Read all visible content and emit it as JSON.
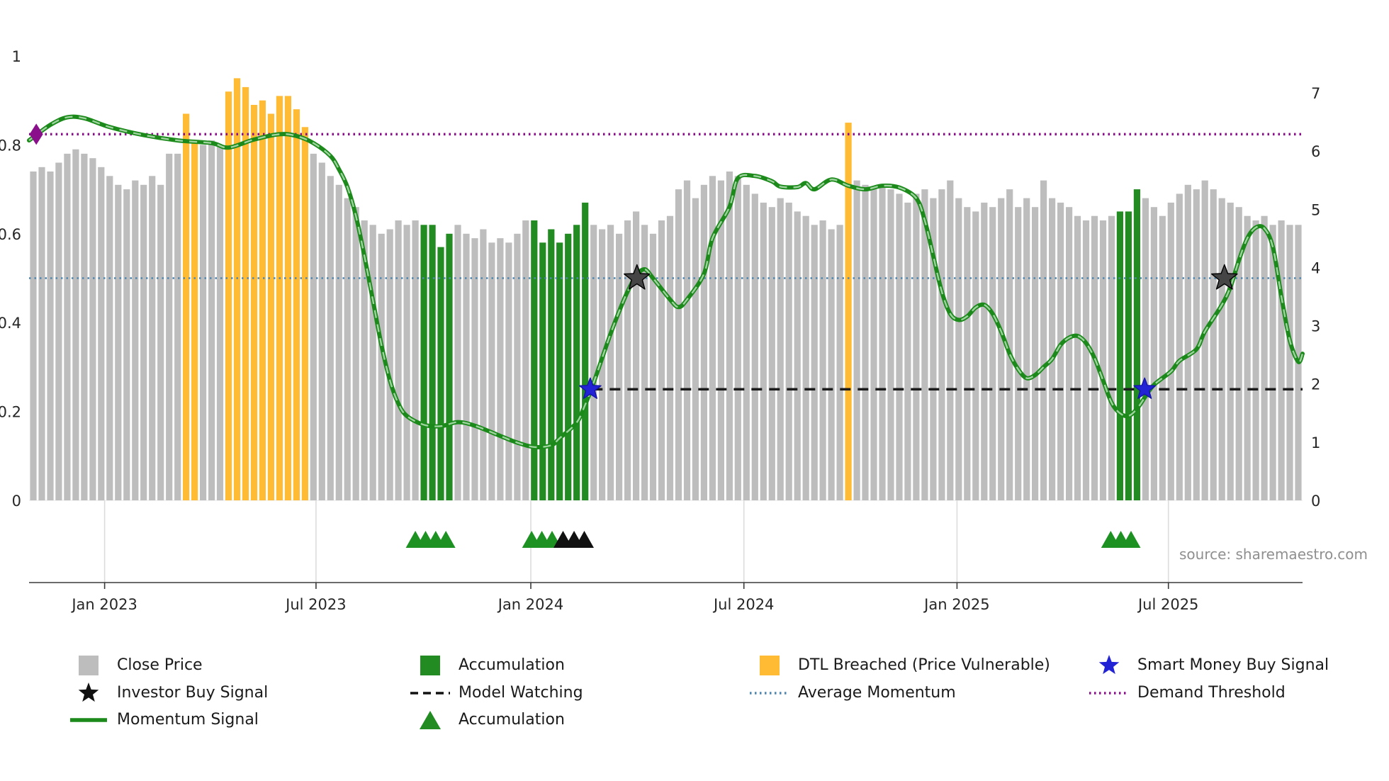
{
  "source": "source: sharemaestro.com",
  "chart_data": {
    "type": "bar",
    "description": "Weekly close price bars (normalized, left axis 0-1) with momentum signal line, threshold lines, buy-signal stars and accumulation markers",
    "x_axis": {
      "tick_labels": [
        "Jan 2023",
        "Jul 2023",
        "Jan 2024",
        "Jul 2024",
        "Jan 2025",
        "Jul 2025"
      ],
      "tick_indices": [
        8.4,
        33.3,
        58.6,
        83.7,
        108.8,
        133.7
      ]
    },
    "left_axis": {
      "ticks": [
        0,
        0.2,
        0.4,
        0.6,
        0.8,
        1
      ],
      "range": [
        0,
        1
      ]
    },
    "right_axis": {
      "ticks": [
        0,
        1,
        2,
        3,
        4,
        5,
        6,
        7
      ],
      "range": [
        0,
        7
      ]
    },
    "colors": {
      "close_price": "#bdbdbd",
      "accumulation": "#228B22",
      "dtl_breached": "#ffbb33",
      "momentum": "#1b8a1b",
      "momentum_highlight": "#9ed29e",
      "demand_threshold": "#8a0f8a",
      "average_momentum": "#4f86b0",
      "model_watching": "#1c1c1c",
      "investor_star": "#454545",
      "smart_money_star": "#2323d6",
      "accumulation_marker": "#1d9222",
      "dark_marker": "#111111"
    },
    "bars": {
      "name": "Close Price",
      "values": [
        0.74,
        0.75,
        0.74,
        0.76,
        0.78,
        0.79,
        0.78,
        0.77,
        0.75,
        0.73,
        0.71,
        0.7,
        0.72,
        0.71,
        0.73,
        0.71,
        0.78,
        0.78,
        0.87,
        0.81,
        0.8,
        0.81,
        0.8,
        0.92,
        0.95,
        0.93,
        0.89,
        0.9,
        0.87,
        0.91,
        0.91,
        0.88,
        0.84,
        0.78,
        0.76,
        0.73,
        0.71,
        0.68,
        0.66,
        0.63,
        0.62,
        0.6,
        0.61,
        0.63,
        0.62,
        0.63,
        0.62,
        0.62,
        0.57,
        0.6,
        0.62,
        0.6,
        0.59,
        0.61,
        0.58,
        0.59,
        0.58,
        0.6,
        0.63,
        0.63,
        0.58,
        0.61,
        0.58,
        0.6,
        0.62,
        0.67,
        0.62,
        0.61,
        0.62,
        0.6,
        0.63,
        0.65,
        0.62,
        0.6,
        0.63,
        0.64,
        0.7,
        0.72,
        0.68,
        0.71,
        0.73,
        0.72,
        0.74,
        0.73,
        0.71,
        0.69,
        0.67,
        0.66,
        0.68,
        0.67,
        0.65,
        0.64,
        0.62,
        0.63,
        0.61,
        0.62,
        0.85,
        0.72,
        0.71,
        0.7,
        0.71,
        0.7,
        0.69,
        0.67,
        0.69,
        0.7,
        0.68,
        0.7,
        0.72,
        0.68,
        0.66,
        0.65,
        0.67,
        0.66,
        0.68,
        0.7,
        0.66,
        0.68,
        0.66,
        0.72,
        0.68,
        0.67,
        0.66,
        0.64,
        0.63,
        0.64,
        0.63,
        0.64,
        0.65,
        0.65,
        0.7,
        0.68,
        0.66,
        0.64,
        0.67,
        0.69,
        0.71,
        0.7,
        0.72,
        0.7,
        0.68,
        0.67,
        0.66,
        0.64,
        0.63,
        0.64,
        0.62,
        0.63,
        0.62,
        0.62
      ],
      "orange_indices": [
        18,
        19,
        23,
        24,
        25,
        26,
        27,
        28,
        29,
        30,
        31,
        32,
        96
      ],
      "green_indices": [
        46,
        47,
        48,
        49,
        59,
        60,
        61,
        62,
        63,
        64,
        65,
        128,
        129,
        130
      ]
    },
    "momentum": {
      "name": "Momentum Signal",
      "points": [
        [
          -0.5,
          0.81
        ],
        [
          2,
          0.845
        ],
        [
          4,
          0.862
        ],
        [
          6,
          0.86
        ],
        [
          9,
          0.84
        ],
        [
          13,
          0.822
        ],
        [
          17,
          0.81
        ],
        [
          21,
          0.804
        ],
        [
          23,
          0.794
        ],
        [
          26,
          0.812
        ],
        [
          29,
          0.824
        ],
        [
          31,
          0.82
        ],
        [
          33,
          0.804
        ],
        [
          35,
          0.775
        ],
        [
          36,
          0.745
        ],
        [
          37,
          0.705
        ],
        [
          38,
          0.64
        ],
        [
          39,
          0.55
        ],
        [
          40,
          0.45
        ],
        [
          41,
          0.35
        ],
        [
          42,
          0.27
        ],
        [
          43,
          0.218
        ],
        [
          44,
          0.19
        ],
        [
          46,
          0.17
        ],
        [
          48,
          0.167
        ],
        [
          50,
          0.176
        ],
        [
          52,
          0.168
        ],
        [
          55,
          0.145
        ],
        [
          57,
          0.13
        ],
        [
          59,
          0.12
        ],
        [
          61,
          0.124
        ],
        [
          62,
          0.14
        ],
        [
          64,
          0.175
        ],
        [
          65,
          0.215
        ],
        [
          66,
          0.265
        ],
        [
          67,
          0.32
        ],
        [
          68,
          0.375
        ],
        [
          69,
          0.425
        ],
        [
          70,
          0.47
        ],
        [
          71,
          0.505
        ],
        [
          72,
          0.52
        ],
        [
          73,
          0.5
        ],
        [
          75,
          0.452
        ],
        [
          76,
          0.435
        ],
        [
          77,
          0.452
        ],
        [
          79,
          0.51
        ],
        [
          80,
          0.59
        ],
        [
          82,
          0.66
        ],
        [
          83,
          0.725
        ],
        [
          85,
          0.73
        ],
        [
          87,
          0.718
        ],
        [
          88,
          0.706
        ],
        [
          90,
          0.705
        ],
        [
          91,
          0.714
        ],
        [
          92,
          0.7
        ],
        [
          94,
          0.722
        ],
        [
          96,
          0.708
        ],
        [
          98,
          0.7
        ],
        [
          100,
          0.708
        ],
        [
          102,
          0.704
        ],
        [
          104,
          0.68
        ],
        [
          105,
          0.63
        ],
        [
          106,
          0.55
        ],
        [
          107,
          0.47
        ],
        [
          108,
          0.42
        ],
        [
          109,
          0.406
        ],
        [
          110,
          0.414
        ],
        [
          111,
          0.434
        ],
        [
          112,
          0.44
        ],
        [
          113,
          0.42
        ],
        [
          114,
          0.38
        ],
        [
          115,
          0.33
        ],
        [
          116,
          0.295
        ],
        [
          117,
          0.275
        ],
        [
          118,
          0.282
        ],
        [
          119,
          0.3
        ],
        [
          120,
          0.318
        ],
        [
          121,
          0.35
        ],
        [
          122,
          0.366
        ],
        [
          123,
          0.37
        ],
        [
          124,
          0.354
        ],
        [
          125,
          0.32
        ],
        [
          126,
          0.27
        ],
        [
          127,
          0.22
        ],
        [
          128,
          0.196
        ],
        [
          129,
          0.19
        ],
        [
          130,
          0.206
        ],
        [
          131,
          0.234
        ],
        [
          132,
          0.26
        ],
        [
          134,
          0.29
        ],
        [
          135,
          0.314
        ],
        [
          137,
          0.34
        ],
        [
          138,
          0.38
        ],
        [
          140,
          0.44
        ],
        [
          141,
          0.48
        ],
        [
          142,
          0.54
        ],
        [
          143,
          0.59
        ],
        [
          144,
          0.614
        ],
        [
          145,
          0.612
        ],
        [
          146,
          0.57
        ],
        [
          147,
          0.46
        ],
        [
          148,
          0.36
        ],
        [
          149,
          0.312
        ],
        [
          149.5,
          0.33
        ]
      ]
    },
    "hlines": [
      {
        "label": "Demand Threshold",
        "value": 0.824,
        "color": "#8a0f8a",
        "style": "dotted",
        "width": 3.5
      },
      {
        "label": "Average Momentum",
        "value": 0.5,
        "color": "#4f86b0",
        "style": "dotted",
        "width": 2.6
      },
      {
        "label": "Model Watching",
        "value": 0.25,
        "color": "#1c1c1c",
        "style": "dashed",
        "width": 3.5,
        "from_index": 65.8
      }
    ],
    "markers": {
      "investor_buy": [
        [
          71.1,
          0.5
        ],
        [
          140.3,
          0.5
        ]
      ],
      "smart_money_buy": [
        [
          65.6,
          0.25
        ],
        [
          130.9,
          0.25
        ]
      ],
      "demand_start": [
        [
          0.35,
          0.824
        ]
      ],
      "accumulation_triangles": [
        45.0,
        46.2,
        47.4,
        48.6,
        58.7,
        59.9,
        61.1,
        126.9,
        128.1,
        129.3
      ],
      "dark_triangles": [
        62.4,
        63.7,
        64.9
      ]
    }
  },
  "legend": {
    "items": [
      {
        "label": "Close Price",
        "marker": "square",
        "color": "#bdbdbd"
      },
      {
        "label": "Investor Buy Signal",
        "marker": "star",
        "color": "#111111"
      },
      {
        "label": "Momentum Signal",
        "marker": "solid-line",
        "color": "#1b8a1b"
      },
      {
        "label": "Accumulation",
        "marker": "square",
        "color": "#228B22"
      },
      {
        "label": "Model Watching",
        "marker": "dashed-line",
        "color": "#111111"
      },
      {
        "label": "Accumulation",
        "marker": "triangle",
        "color": "#228B22"
      },
      {
        "label": "DTL Breached (Price Vulnerable)",
        "marker": "square",
        "color": "#ffbb33"
      },
      {
        "label": "Average Momentum",
        "marker": "dotted-line",
        "color": "#4f86b0"
      },
      {
        "label": "Smart Money Buy Signal",
        "marker": "star",
        "color": "#2323d6"
      },
      {
        "label": "Demand Threshold",
        "marker": "dotted-line",
        "color": "#8a0f8a"
      }
    ]
  }
}
